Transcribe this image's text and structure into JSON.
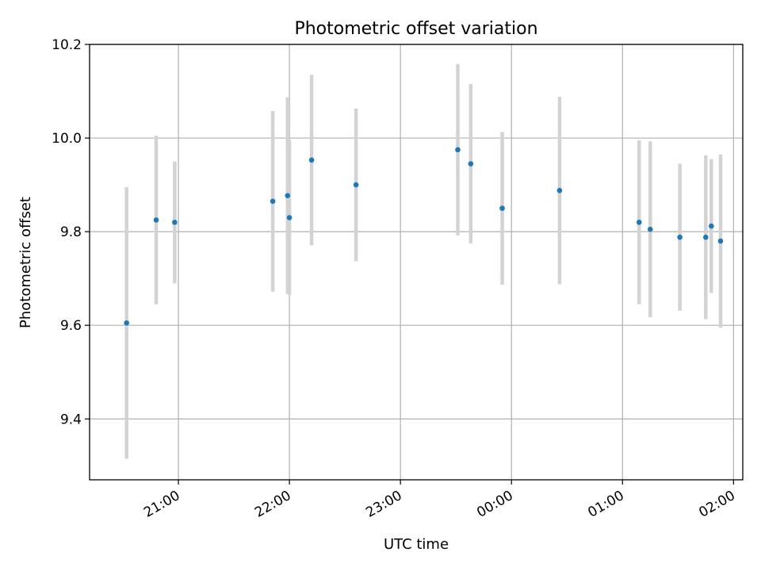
{
  "chart_data": {
    "type": "scatter",
    "title": "Photometric offset variation",
    "xlabel": "UTC time",
    "ylabel": "Photometric offset",
    "x_ticks": [
      "21:00",
      "22:00",
      "23:00",
      "00:00",
      "01:00",
      "02:00"
    ],
    "y_ticks": [
      "9.4",
      "9.6",
      "9.8",
      "10.0",
      "10.2"
    ],
    "xlim": [
      "20:12",
      "02:05"
    ],
    "ylim": [
      9.27,
      10.2
    ],
    "grid": true,
    "colors": {
      "point": "#1f77b4",
      "errorbar": "#d3d3d3",
      "grid": "#b0b0b0"
    },
    "points": [
      {
        "t": "20:32",
        "y": 9.605,
        "err": 0.29
      },
      {
        "t": "20:48",
        "y": 9.825,
        "err": 0.18
      },
      {
        "t": "20:58",
        "y": 9.82,
        "err": 0.13
      },
      {
        "t": "21:51",
        "y": 9.865,
        "err": 0.193
      },
      {
        "t": "21:59",
        "y": 9.877,
        "err": 0.21
      },
      {
        "t": "22:00",
        "y": 9.83,
        "err": 0.165
      },
      {
        "t": "22:12",
        "y": 9.953,
        "err": 0.182
      },
      {
        "t": "22:36",
        "y": 9.9,
        "err": 0.163
      },
      {
        "t": "23:31",
        "y": 9.975,
        "err": 0.183
      },
      {
        "t": "23:38",
        "y": 9.945,
        "err": 0.17
      },
      {
        "t": "23:55",
        "y": 9.85,
        "err": 0.163
      },
      {
        "t": "00:26",
        "y": 9.888,
        "err": 0.2
      },
      {
        "t": "01:09",
        "y": 9.82,
        "err": 0.175
      },
      {
        "t": "01:15",
        "y": 9.805,
        "err": 0.188
      },
      {
        "t": "01:31",
        "y": 9.788,
        "err": 0.157
      },
      {
        "t": "01:45",
        "y": 9.788,
        "err": 0.175
      },
      {
        "t": "01:48",
        "y": 9.812,
        "err": 0.143
      },
      {
        "t": "01:53",
        "y": 9.78,
        "err": 0.185
      }
    ]
  }
}
